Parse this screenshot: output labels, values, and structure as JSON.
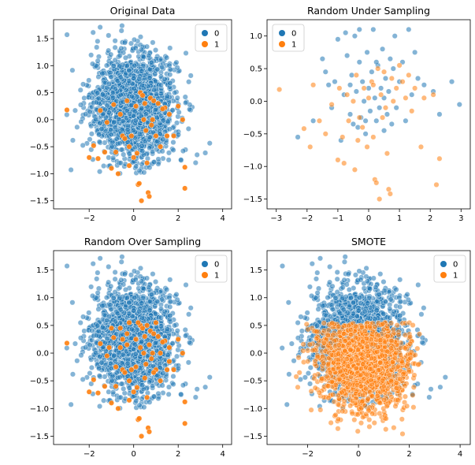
{
  "colors": {
    "class0": "#1f77b4",
    "class1": "#ff7f0e",
    "axis": "#000000"
  },
  "chart_data": [
    {
      "type": "scatter",
      "title": "Original Data",
      "xlabel": "",
      "ylabel": "",
      "xlim": [
        -3.6,
        4.4
      ],
      "ylim": [
        -1.65,
        1.85
      ],
      "xticks": [
        -2,
        0,
        2,
        4
      ],
      "yticks": [
        -1.5,
        -1.0,
        -0.5,
        0.0,
        0.5,
        1.0,
        1.5
      ],
      "legend": {
        "placement": "top-right",
        "entries": [
          "0",
          "1"
        ]
      },
      "grid": false,
      "series": [
        {
          "name": "0",
          "color": "#1f77b4",
          "cluster": {
            "count": 1700,
            "mean": [
              0.0,
              0.25
            ],
            "sd": [
              0.95,
              0.5
            ],
            "xrange": [
              -3.3,
              4.1
            ],
            "yrange": [
              -1.0,
              1.75
            ]
          }
        },
        {
          "name": "1",
          "color": "#ff7f0e",
          "points": [
            [
              -3.0,
              0.18
            ],
            [
              -2.0,
              -0.7
            ],
            [
              -1.8,
              -0.48
            ],
            [
              -1.6,
              -0.72
            ],
            [
              -1.5,
              0.17
            ],
            [
              -1.2,
              -0.05
            ],
            [
              -1.0,
              -0.9
            ],
            [
              -0.9,
              0.28
            ],
            [
              -0.8,
              -0.6
            ],
            [
              -0.7,
              -1.0
            ],
            [
              -0.6,
              0.1
            ],
            [
              -0.5,
              -0.3
            ],
            [
              -0.4,
              -0.35
            ],
            [
              -0.3,
              0.35
            ],
            [
              -0.2,
              -0.5
            ],
            [
              -0.1,
              -0.3
            ],
            [
              0.0,
              -0.7
            ],
            [
              0.1,
              0.25
            ],
            [
              0.15,
              -0.62
            ],
            [
              0.2,
              -1.2
            ],
            [
              0.25,
              -1.18
            ],
            [
              0.3,
              0.5
            ],
            [
              0.35,
              -1.5
            ],
            [
              0.4,
              0.45
            ],
            [
              0.45,
              0.0
            ],
            [
              0.5,
              0.3
            ],
            [
              0.55,
              -0.2
            ],
            [
              0.6,
              -0.8
            ],
            [
              0.65,
              -1.35
            ],
            [
              0.7,
              -1.42
            ],
            [
              0.75,
              0.4
            ],
            [
              0.8,
              -0.1
            ],
            [
              0.85,
              0.0
            ],
            [
              0.9,
              0.35
            ],
            [
              1.0,
              -0.3
            ],
            [
              1.1,
              0.3
            ],
            [
              1.2,
              -0.5
            ],
            [
              1.4,
              0.22
            ],
            [
              1.5,
              -0.3
            ],
            [
              1.6,
              0.1
            ],
            [
              1.8,
              -0.3
            ],
            [
              2.3,
              -0.88
            ],
            [
              2.3,
              -1.27
            ],
            [
              2.2,
              0.0
            ],
            [
              2.0,
              0.25
            ],
            [
              1.3,
              0.2
            ],
            [
              -0.2,
              -0.85
            ],
            [
              -1.3,
              -0.6
            ]
          ]
        }
      ]
    },
    {
      "type": "scatter",
      "title": "Random Under Sampling",
      "xlabel": "",
      "ylabel": "",
      "xlim": [
        -3.3,
        3.3
      ],
      "ylim": [
        -1.65,
        1.25
      ],
      "xticks": [
        -3,
        -2,
        -1,
        0,
        1,
        2,
        3
      ],
      "yticks": [
        -1.5,
        -1.0,
        -0.5,
        0.0,
        0.5,
        1.0
      ],
      "legend": {
        "placement": "top-left",
        "entries": [
          "0",
          "1"
        ]
      },
      "grid": false,
      "series": [
        {
          "name": "0",
          "color": "#1f77b4",
          "points": [
            [
              -2.3,
              -0.55
            ],
            [
              -1.8,
              -0.3
            ],
            [
              -1.5,
              0.65
            ],
            [
              -1.4,
              0.45
            ],
            [
              -1.3,
              0.25
            ],
            [
              -1.2,
              -0.1
            ],
            [
              -1.1,
              0.3
            ],
            [
              -1.0,
              0.95
            ],
            [
              -0.9,
              -0.6
            ],
            [
              -0.8,
              0.1
            ],
            [
              -0.75,
              1.05
            ],
            [
              -0.7,
              0.7
            ],
            [
              -0.6,
              -0.2
            ],
            [
              -0.55,
              0.4
            ],
            [
              -0.5,
              -0.35
            ],
            [
              -0.45,
              1.0
            ],
            [
              -0.4,
              0.15
            ],
            [
              -0.35,
              -0.4
            ],
            [
              -0.3,
              0.6
            ],
            [
              -0.25,
              -0.25
            ],
            [
              -0.2,
              0.3
            ],
            [
              -0.15,
              0.0
            ],
            [
              -0.1,
              -0.5
            ],
            [
              -0.05,
              0.75
            ],
            [
              0.0,
              0.2
            ],
            [
              0.05,
              -0.15
            ],
            [
              0.1,
              0.45
            ],
            [
              0.15,
              1.1
            ],
            [
              0.2,
              0.05
            ],
            [
              0.25,
              -0.3
            ],
            [
              0.3,
              0.55
            ],
            [
              0.35,
              -0.1
            ],
            [
              0.4,
              0.2
            ],
            [
              0.45,
              0.8
            ],
            [
              0.5,
              -0.45
            ],
            [
              0.55,
              0.35
            ],
            [
              0.6,
              -0.2
            ],
            [
              0.65,
              0.15
            ],
            [
              0.7,
              0.65
            ],
            [
              0.75,
              -0.35
            ],
            [
              0.8,
              0.5
            ],
            [
              0.85,
              1.0
            ],
            [
              0.9,
              -0.1
            ],
            [
              1.0,
              0.3
            ],
            [
              1.1,
              0.6
            ],
            [
              1.2,
              -0.3
            ],
            [
              1.3,
              1.1
            ],
            [
              1.4,
              0.1
            ],
            [
              1.5,
              0.75
            ],
            [
              1.6,
              0.35
            ],
            [
              1.8,
              0.25
            ],
            [
              2.1,
              0.15
            ],
            [
              2.3,
              -0.2
            ],
            [
              2.7,
              0.3
            ],
            [
              2.95,
              -0.05
            ],
            [
              -0.3,
              1.1
            ],
            [
              0.25,
              0.6
            ],
            [
              -0.6,
              0.25
            ],
            [
              0.5,
              0.05
            ],
            [
              -0.1,
              -0.3
            ]
          ]
        },
        {
          "name": "1",
          "color": "#ff7f0e",
          "points": [
            [
              -2.9,
              0.18
            ],
            [
              -2.1,
              -0.42
            ],
            [
              -1.9,
              -0.7
            ],
            [
              -1.8,
              0.25
            ],
            [
              -1.6,
              -0.3
            ],
            [
              -1.4,
              -0.5
            ],
            [
              -1.2,
              -0.05
            ],
            [
              -1.0,
              -0.9
            ],
            [
              -0.95,
              0.2
            ],
            [
              -0.85,
              -0.55
            ],
            [
              -0.8,
              -0.95
            ],
            [
              -0.7,
              0.1
            ],
            [
              -0.65,
              -0.3
            ],
            [
              -0.5,
              0.0
            ],
            [
              -0.45,
              -1.05
            ],
            [
              -0.4,
              0.4
            ],
            [
              -0.35,
              -0.6
            ],
            [
              -0.3,
              -0.25
            ],
            [
              -0.2,
              -0.4
            ],
            [
              -0.15,
              0.2
            ],
            [
              -0.05,
              -0.7
            ],
            [
              0.0,
              0.05
            ],
            [
              0.1,
              0.3
            ],
            [
              0.15,
              -0.55
            ],
            [
              0.2,
              -1.2
            ],
            [
              0.25,
              -1.25
            ],
            [
              0.3,
              0.5
            ],
            [
              0.35,
              -1.5
            ],
            [
              0.4,
              0.1
            ],
            [
              0.45,
              -0.25
            ],
            [
              0.5,
              0.45
            ],
            [
              0.55,
              -0.1
            ],
            [
              0.6,
              -0.8
            ],
            [
              0.65,
              -1.35
            ],
            [
              0.7,
              -1.42
            ],
            [
              0.75,
              0.35
            ],
            [
              0.8,
              0.0
            ],
            [
              0.9,
              0.2
            ],
            [
              1.0,
              0.55
            ],
            [
              1.1,
              0.3
            ],
            [
              1.3,
              0.4
            ],
            [
              1.4,
              -0.15
            ],
            [
              1.5,
              0.2
            ],
            [
              1.7,
              -0.7
            ],
            [
              1.8,
              0.05
            ],
            [
              2.2,
              -1.28
            ],
            [
              2.3,
              -0.88
            ],
            [
              2.1,
              0.1
            ],
            [
              1.2,
              0.05
            ],
            [
              0.15,
              0.25
            ]
          ]
        }
      ]
    },
    {
      "type": "scatter",
      "title": "Random Over Sampling",
      "xlabel": "",
      "ylabel": "",
      "xlim": [
        -3.6,
        4.4
      ],
      "ylim": [
        -1.65,
        1.85
      ],
      "xticks": [
        -2,
        0,
        2,
        4
      ],
      "yticks": [
        -1.5,
        -1.0,
        -0.5,
        0.0,
        0.5,
        1.0,
        1.5
      ],
      "legend": {
        "placement": "top-right",
        "entries": [
          "0",
          "1"
        ]
      },
      "grid": false,
      "series": [
        {
          "name": "0",
          "color": "#1f77b4",
          "cluster": {
            "count": 1700,
            "mean": [
              0.0,
              0.25
            ],
            "sd": [
              0.95,
              0.5
            ],
            "xrange": [
              -3.3,
              4.1
            ],
            "yrange": [
              -1.0,
              1.75
            ]
          }
        },
        {
          "name": "1",
          "color": "#ff7f0e",
          "points": [
            [
              -3.0,
              0.18
            ],
            [
              -2.0,
              -0.7
            ],
            [
              -1.8,
              -0.48
            ],
            [
              -1.6,
              -0.72
            ],
            [
              -1.5,
              0.17
            ],
            [
              -1.2,
              -0.05
            ],
            [
              -1.0,
              -0.9
            ],
            [
              -0.9,
              0.28
            ],
            [
              -0.8,
              -0.6
            ],
            [
              -0.7,
              -1.0
            ],
            [
              -0.6,
              0.1
            ],
            [
              -0.5,
              -0.3
            ],
            [
              -0.4,
              -0.35
            ],
            [
              -0.3,
              0.35
            ],
            [
              -0.2,
              -0.5
            ],
            [
              -0.1,
              -0.3
            ],
            [
              0.0,
              -0.7
            ],
            [
              0.1,
              0.25
            ],
            [
              0.15,
              -0.62
            ],
            [
              0.2,
              -1.2
            ],
            [
              0.25,
              -1.18
            ],
            [
              0.3,
              0.5
            ],
            [
              0.35,
              -1.5
            ],
            [
              0.4,
              0.45
            ],
            [
              0.45,
              0.0
            ],
            [
              0.5,
              0.3
            ],
            [
              0.55,
              -0.2
            ],
            [
              0.6,
              -0.8
            ],
            [
              0.65,
              -1.35
            ],
            [
              0.7,
              -1.42
            ],
            [
              0.75,
              0.4
            ],
            [
              0.8,
              -0.1
            ],
            [
              0.85,
              0.0
            ],
            [
              0.9,
              0.35
            ],
            [
              1.0,
              -0.3
            ],
            [
              1.1,
              0.3
            ],
            [
              1.2,
              -0.5
            ],
            [
              1.4,
              0.22
            ],
            [
              1.5,
              -0.3
            ],
            [
              1.6,
              0.1
            ],
            [
              1.8,
              -0.3
            ],
            [
              2.3,
              -0.88
            ],
            [
              2.3,
              -1.27
            ],
            [
              2.2,
              0.0
            ],
            [
              2.0,
              0.25
            ],
            [
              1.3,
              0.2
            ],
            [
              -0.2,
              -0.85
            ],
            [
              -1.3,
              -0.6
            ],
            [
              -1.0,
              0.45
            ],
            [
              -0.6,
              0.45
            ],
            [
              -0.2,
              0.55
            ],
            [
              0.2,
              0.55
            ],
            [
              0.6,
              0.5
            ],
            [
              1.0,
              0.55
            ],
            [
              -1.1,
              0.1
            ],
            [
              -0.3,
              0.15
            ],
            [
              0.3,
              0.1
            ],
            [
              0.7,
              0.15
            ],
            [
              1.2,
              0.0
            ],
            [
              -0.8,
              -0.25
            ],
            [
              0.1,
              -0.25
            ],
            [
              0.9,
              -0.35
            ],
            [
              1.6,
              -0.15
            ],
            [
              -0.5,
              0.25
            ],
            [
              0.5,
              -0.45
            ]
          ]
        }
      ]
    },
    {
      "type": "scatter",
      "title": "SMOTE",
      "xlabel": "",
      "ylabel": "",
      "xlim": [
        -3.6,
        4.4
      ],
      "ylim": [
        -1.65,
        1.85
      ],
      "xticks": [
        -2,
        0,
        2,
        4
      ],
      "yticks": [
        -1.5,
        -1.0,
        -0.5,
        0.0,
        0.5,
        1.0,
        1.5
      ],
      "legend": {
        "placement": "top-right",
        "entries": [
          "0",
          "1"
        ]
      },
      "grid": false,
      "series": [
        {
          "name": "0",
          "color": "#1f77b4",
          "cluster": {
            "count": 1700,
            "mean": [
              0.0,
              0.25
            ],
            "sd": [
              0.95,
              0.5
            ],
            "xrange": [
              -3.3,
              4.1
            ],
            "yrange": [
              -1.0,
              1.75
            ]
          }
        },
        {
          "name": "1",
          "color": "#ff7f0e",
          "cluster": {
            "count": 1500,
            "mean": [
              0.2,
              -0.15
            ],
            "sd": [
              0.9,
              0.45
            ],
            "xrange": [
              -3.0,
              2.4
            ],
            "yrange": [
              -1.5,
              0.55
            ]
          }
        }
      ]
    }
  ]
}
